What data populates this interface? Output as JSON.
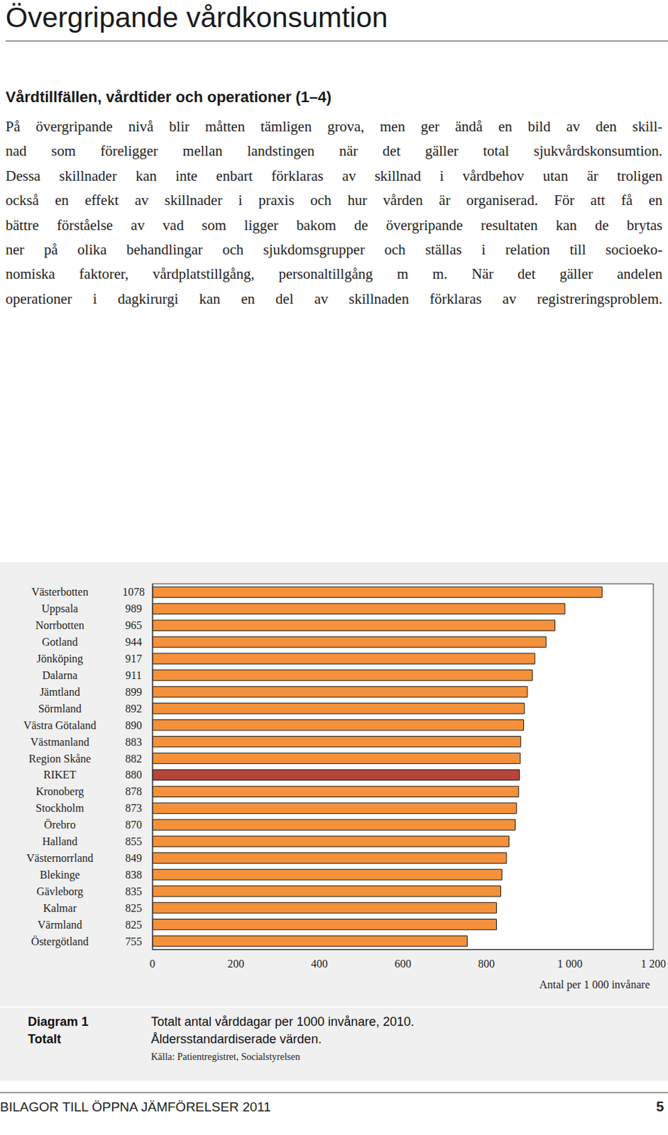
{
  "header": {
    "title": "Övergripande vårdkonsumtion"
  },
  "section": {
    "heading": "Vårdtillfällen, vårdtider och operationer (1–4)",
    "lines": [
      "På övergripande nivå blir måtten tämligen grova, men ger ändå en bild av den skill-",
      "nad som föreligger mellan landstingen när det gäller total sjukvårdskonsumtion.",
      "Dessa skillnader kan inte enbart förklaras av skillnad i vårdbehov utan är troligen",
      "också en effekt av skillnader i praxis och hur vården är organiserad. För att få en",
      "bättre förståelse av vad som ligger bakom de övergripande resultaten kan de brytas",
      "ner på olika behandlingar och sjukdomsgrupper och ställas i relation till socioeko-",
      "nomiska faktorer, vårdplatstillgång, personaltillgång m m. När det gäller andelen",
      "operationer i dagkirurgi kan en del av skillnaden förklaras av registreringsproblem."
    ]
  },
  "chart_data": {
    "type": "bar",
    "orientation": "horizontal",
    "title": "Totalt antal vårddagar per 1000 invånare, 2010.",
    "subtitle": "Åldersstandardiserade värden.",
    "categories": [
      "Västerbotten",
      "Uppsala",
      "Norrbotten",
      "Gotland",
      "Jönköping",
      "Dalarna",
      "Jämtland",
      "Sörmland",
      "Västra Götaland",
      "Västmanland",
      "Region Skåne",
      "RIKET",
      "Kronoberg",
      "Stockholm",
      "Örebro",
      "Halland",
      "Västernorrland",
      "Blekinge",
      "Gävleborg",
      "Kalmar",
      "Värmland",
      "Östergötland"
    ],
    "values": [
      1078,
      989,
      965,
      944,
      917,
      911,
      899,
      892,
      890,
      883,
      882,
      880,
      878,
      873,
      870,
      855,
      849,
      838,
      835,
      825,
      825,
      755
    ],
    "colors": [
      "#f4913a",
      "#f4913a",
      "#f4913a",
      "#f4913a",
      "#f4913a",
      "#f4913a",
      "#f4913a",
      "#f4913a",
      "#f4913a",
      "#f4913a",
      "#f4913a",
      "#b5443a",
      "#f4913a",
      "#f4913a",
      "#f4913a",
      "#f4913a",
      "#f4913a",
      "#f4913a",
      "#f4913a",
      "#f4913a",
      "#f4913a",
      "#f4913a"
    ],
    "xlim": [
      0,
      1200
    ],
    "xticks": [
      0,
      200,
      400,
      600,
      800,
      {
        "value": 1000,
        "label": "1 000"
      },
      {
        "value": 1200,
        "label": "1 200"
      }
    ],
    "xlabel": "Antal per 1 000 invånare",
    "grid": false,
    "data_labels": true
  },
  "caption": {
    "label": "Diagram 1",
    "sublabel": "Totalt",
    "source": "Källa: Patientregistret, Socialstyrelsen"
  },
  "footer": {
    "text": "BILAGOR TILL ÖPPNA JÄMFÖRELSER 2011",
    "page": 5
  }
}
